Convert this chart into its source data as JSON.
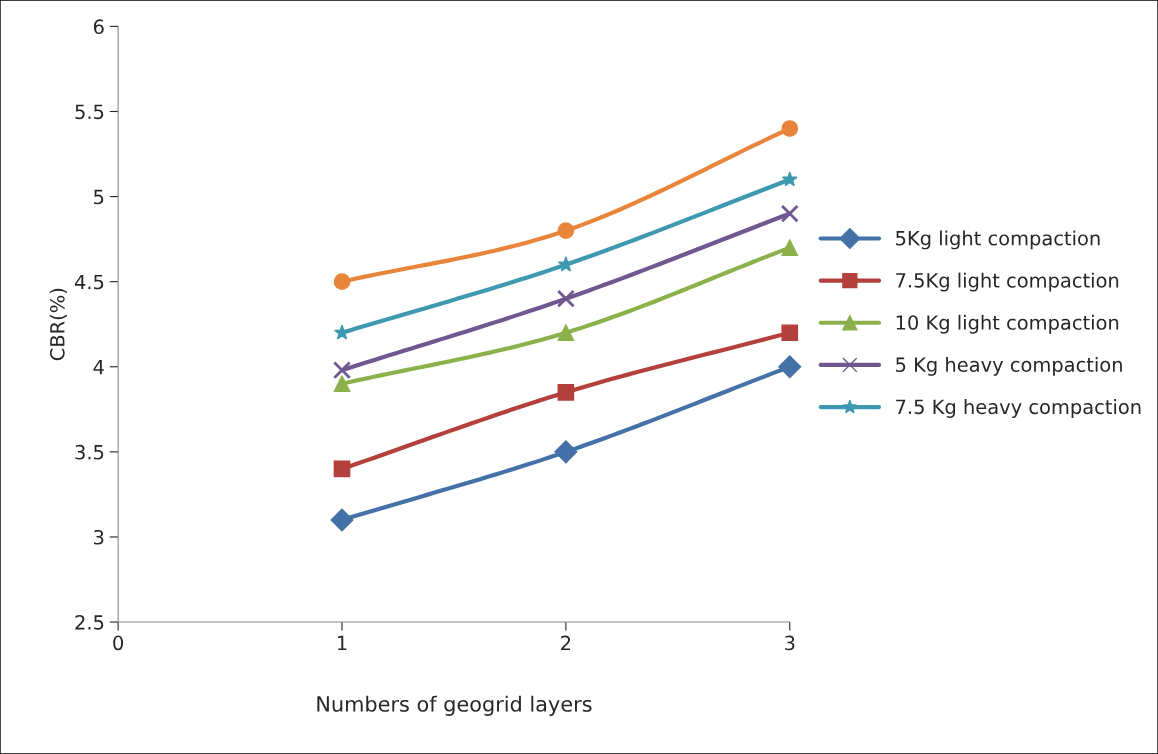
{
  "chart_data": {
    "type": "line",
    "xlabel": "Numbers of geogrid layers",
    "ylabel": "CBR(%)",
    "x": [
      1,
      2,
      3
    ],
    "xlim": [
      0,
      3
    ],
    "xticks": [
      0,
      1,
      2,
      3
    ],
    "ylim": [
      2.5,
      6
    ],
    "yticks": [
      2.5,
      3,
      3.5,
      4,
      4.5,
      5,
      5.5,
      6
    ],
    "grid": false,
    "legend": "right",
    "series": [
      {
        "name": "5Kg light compaction",
        "color": "#4472a8",
        "marker": "diamond",
        "values": [
          3.1,
          3.5,
          4.0
        ]
      },
      {
        "name": "7.5Kg light compaction",
        "color": "#b3403c",
        "marker": "square",
        "values": [
          3.4,
          3.85,
          4.2
        ]
      },
      {
        "name": "10 Kg light compaction",
        "color": "#8cb04a",
        "marker": "triangle",
        "values": [
          3.9,
          4.2,
          4.7
        ]
      },
      {
        "name": "5 Kg heavy compaction",
        "color": "#6f5790",
        "marker": "cross",
        "values": [
          3.98,
          4.4,
          4.9
        ]
      },
      {
        "name": "7.5 Kg heavy compaction",
        "color": "#3d98b0",
        "marker": "star",
        "values": [
          4.2,
          4.6,
          5.1
        ]
      },
      {
        "color": "#e8853a",
        "marker": "circle",
        "values": [
          4.5,
          4.8,
          5.4
        ]
      }
    ]
  }
}
